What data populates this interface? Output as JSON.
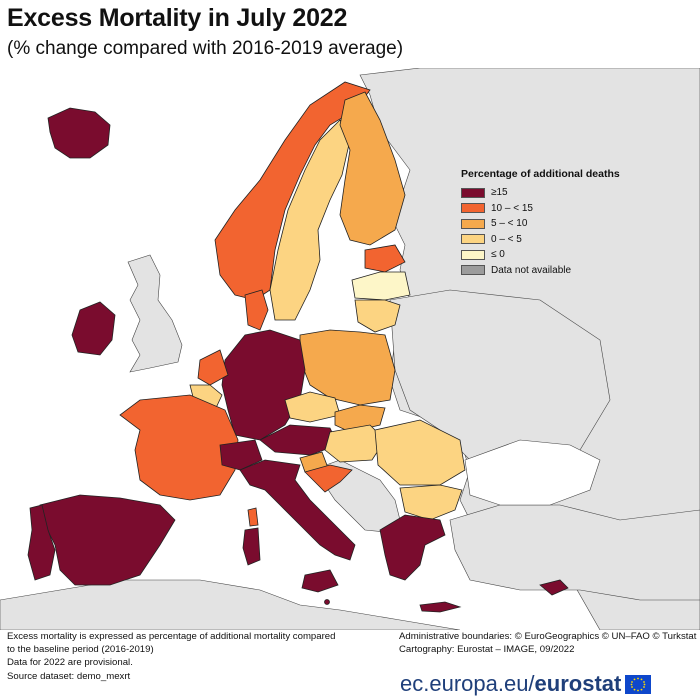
{
  "header": {
    "title": "Excess Mortality in July 2022",
    "subtitle": "(% change compared with 2016-2019 average)"
  },
  "legend": {
    "title": "Percentage of additional deaths",
    "items": [
      {
        "label": "≥15",
        "color": "#7a0c2e"
      },
      {
        "label": "10 – < 15",
        "color": "#f26430"
      },
      {
        "label": "5 – < 10",
        "color": "#f5a94d"
      },
      {
        "label": "0 – < 5",
        "color": "#fcd482"
      },
      {
        "label": "≤ 0",
        "color": "#fdf6c8"
      },
      {
        "label": "Data not available",
        "color": "#9c9c9c"
      }
    ]
  },
  "colors": {
    "non_eu": "#e3e3e3",
    "sea": "#ffffff",
    "border": "#333333"
  },
  "map_regions": [
    {
      "country": "Iceland",
      "class": "≥15"
    },
    {
      "country": "Ireland",
      "class": "≥15"
    },
    {
      "country": "Norway",
      "class": "10 – < 15"
    },
    {
      "country": "Sweden",
      "class": "0 – < 5"
    },
    {
      "country": "Finland",
      "class": "5 – < 10"
    },
    {
      "country": "Estonia",
      "class": "10 – < 15"
    },
    {
      "country": "Latvia",
      "class": "≤ 0"
    },
    {
      "country": "Lithuania",
      "class": "0 – < 5"
    },
    {
      "country": "Denmark",
      "class": "10 – < 15"
    },
    {
      "country": "Netherlands",
      "class": "10 – < 15"
    },
    {
      "country": "Belgium",
      "class": "0 – < 5"
    },
    {
      "country": "Luxembourg",
      "class": "≥15"
    },
    {
      "country": "Germany",
      "class": "≥15"
    },
    {
      "country": "Poland",
      "class": "5 – < 10"
    },
    {
      "country": "Czechia",
      "class": "0 – < 5"
    },
    {
      "country": "Slovakia",
      "class": "5 – < 10"
    },
    {
      "country": "Hungary",
      "class": "0 – < 5"
    },
    {
      "country": "Austria",
      "class": "≥15"
    },
    {
      "country": "Switzerland",
      "class": "≥15"
    },
    {
      "country": "Liechtenstein",
      "class": "≥15"
    },
    {
      "country": "Slovenia",
      "class": "5 – < 10"
    },
    {
      "country": "Croatia",
      "class": "10 – < 15"
    },
    {
      "country": "France",
      "class": "10 – < 15"
    },
    {
      "country": "Spain",
      "class": "≥15"
    },
    {
      "country": "Portugal",
      "class": "≥15"
    },
    {
      "country": "Italy",
      "class": "≥15"
    },
    {
      "country": "Malta",
      "class": "≥15"
    },
    {
      "country": "Romania",
      "class": "0 – < 5"
    },
    {
      "country": "Bulgaria",
      "class": "0 – < 5"
    },
    {
      "country": "Greece",
      "class": "≥15"
    },
    {
      "country": "Cyprus",
      "class": "≥15"
    }
  ],
  "footer": {
    "notes": [
      "Excess mortality is expressed as percentage of additional mortality compared",
      "to the baseline period (2016-2019)",
      "Data for 2022 are provisional.",
      "Source dataset: demo_mexrt"
    ],
    "credits": [
      "Administrative boundaries: © EuroGeographics © UN–FAO © Turkstat",
      "Cartography: Eurostat – IMAGE, 09/2022"
    ]
  },
  "branding": {
    "url_prefix": "ec.europa.eu/",
    "url_brand": "eurostat"
  }
}
